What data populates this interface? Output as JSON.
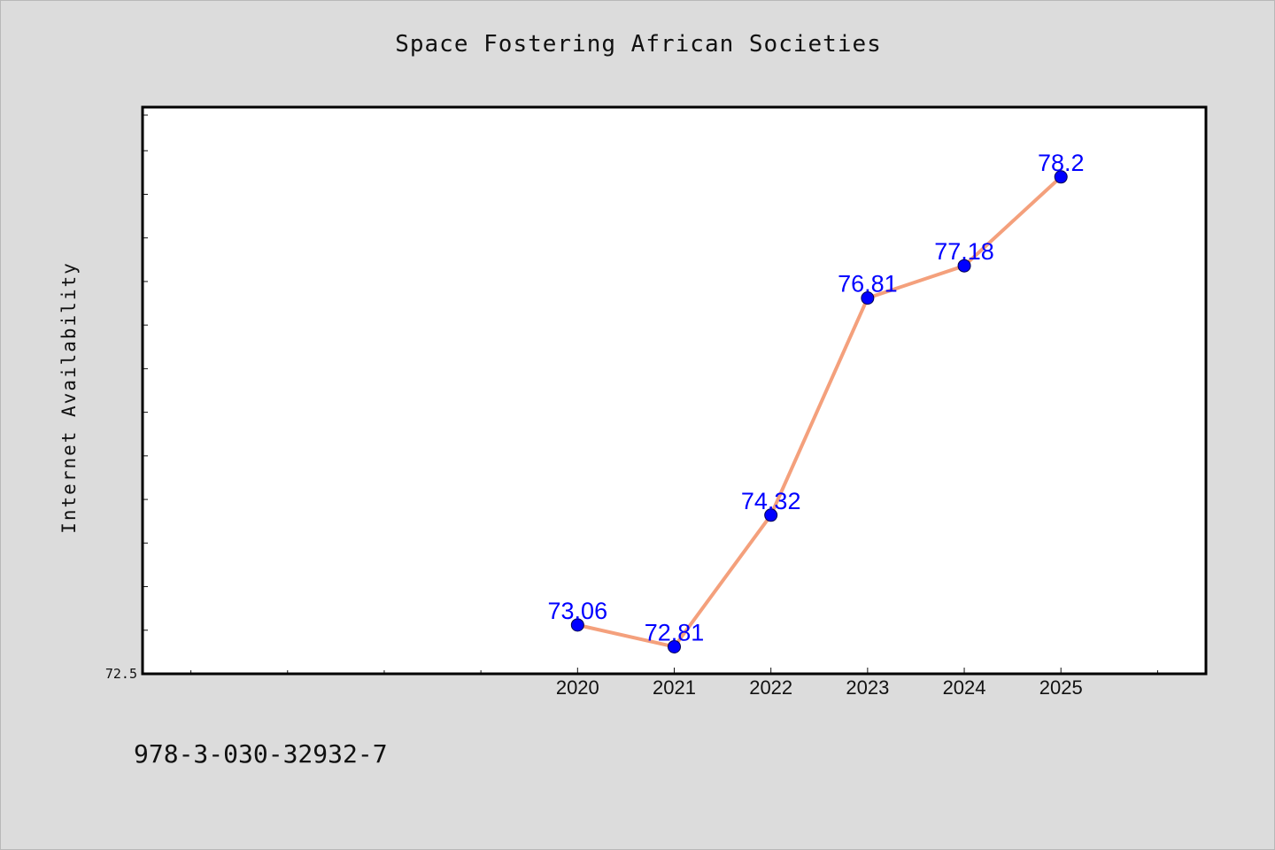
{
  "title": "Space Fostering African Societies",
  "ylabel": "Internet Availability",
  "footer_code": "978-3-030-32932-7",
  "colors": {
    "background": "#dcdcdc",
    "plot_background": "#ffffff",
    "line": "#f4a07c",
    "marker": "#0000ff",
    "data_label": "#0000ff"
  },
  "chart_data": {
    "type": "line",
    "title": "Space Fostering African Societies",
    "xlabel": "",
    "ylabel": "Internet Availability",
    "x": [
      2020,
      2021,
      2022,
      2023,
      2024,
      2025
    ],
    "x_tick_labels": [
      "2020",
      "2021",
      "2022",
      "2023",
      "2024",
      "2025"
    ],
    "xlim": [
      2015.5,
      2026.5
    ],
    "series": [
      {
        "values": [
          73.06,
          72.81,
          74.32,
          76.81,
          77.18,
          78.2
        ],
        "data_labels": [
          "73.06",
          "72.81",
          "74.32",
          "76.81",
          "77.18",
          "78.2"
        ]
      }
    ],
    "ylim": [
      72.5,
      79.0
    ],
    "y_tick_labels": [
      "72.5"
    ],
    "y_minor_step": 0.5,
    "grid": false,
    "legend": "none"
  }
}
